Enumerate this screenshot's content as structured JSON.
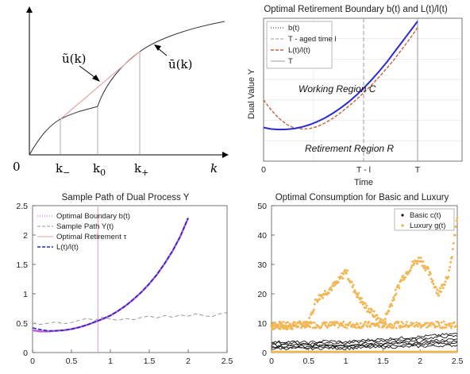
{
  "chart_data": [
    {
      "type": "line",
      "title": "",
      "xlabel": "k",
      "ylabel": "",
      "x_ticks": [
        "0",
        "k_-",
        "k_0",
        "k_+",
        "k"
      ],
      "origin_label": "0",
      "annotations": [
        "ũ(k)",
        "ū(k)"
      ],
      "series": [
        {
          "name": "ũ(k)",
          "x": [
            0.0,
            0.5,
            1.0,
            1.5,
            1.8,
            2.6
          ],
          "y": [
            0.0,
            1.5,
            2.2,
            2.8,
            3.2,
            2.5
          ]
        },
        {
          "name": "ū(k)",
          "x": [
            2.6,
            3.2,
            4.0,
            5.0,
            6.0,
            7.5
          ],
          "y": [
            2.5,
            3.8,
            4.8,
            5.6,
            6.1,
            6.6
          ]
        }
      ],
      "tangent_line": {
        "x": [
          1.8,
          4.2
        ],
        "y": [
          2.2,
          4.9
        ]
      },
      "grid": false
    },
    {
      "type": "line",
      "title": "Optimal Retirement Boundary b(t) and L(t)/l(t)",
      "xlabel": "Time",
      "ylabel": "Dual Value Y",
      "x_ticks": [
        "0",
        "T - l",
        "T"
      ],
      "regions": [
        "Working Region C",
        "Retirement Region R"
      ],
      "legend": [
        "b(t)",
        "T - aged time l",
        "L(t)/l(t)",
        "T"
      ],
      "legend_position": "top-left",
      "grid": true,
      "series": [
        {
          "name": "b(t)",
          "x": [
            0,
            0.05,
            0.1,
            0.15,
            0.2,
            0.25,
            0.3,
            0.35,
            0.4,
            0.45,
            0.5,
            0.55,
            0.6,
            0.65,
            0.7,
            0.75,
            0.8,
            0.85,
            0.9,
            0.95,
            1.0
          ],
          "y": [
            0.33,
            0.315,
            0.31,
            0.312,
            0.32,
            0.335,
            0.358,
            0.388,
            0.425,
            0.47,
            0.52,
            0.578,
            0.643,
            0.715,
            0.795,
            0.88,
            0.97,
            1.07,
            1.17,
            1.27,
            1.37
          ]
        },
        {
          "name": "L(t)/l(t)",
          "x": [
            0,
            0.05,
            0.1,
            0.15,
            0.2,
            0.25,
            0.3,
            0.35,
            0.4,
            0.45,
            0.5,
            0.55,
            0.6,
            0.65,
            0.7,
            0.75,
            0.8,
            0.85,
            0.9,
            0.95,
            1.0
          ],
          "y": [
            0.6,
            0.5,
            0.42,
            0.36,
            0.325,
            0.315,
            0.32,
            0.34,
            0.375,
            0.42,
            0.475,
            0.535,
            0.6,
            0.67,
            0.745,
            0.825,
            0.91,
            1.0,
            1.1,
            1.2,
            1.31
          ]
        }
      ]
    },
    {
      "type": "line",
      "title": "Sample Path of Dual Process Y",
      "xlabel": "",
      "ylabel": "",
      "xlim": [
        0,
        2.5
      ],
      "ylim": [
        0,
        2.5
      ],
      "x_ticks": [
        "0",
        "0.5",
        "1",
        "1.5",
        "2",
        "2.5"
      ],
      "y_ticks": [
        "0",
        "0.5",
        "1",
        "1.5",
        "2",
        "2.5"
      ],
      "legend": [
        "Optimal Boundary b(t)",
        "Sample Path Y(t)",
        "Optimal Retirement τ",
        "L(t)/l(t)"
      ],
      "legend_position": "top-left",
      "grid": false,
      "retirement_time": 0.84,
      "series": [
        {
          "name": "Optimal Boundary b(t)",
          "x": [
            0,
            0.1,
            0.2,
            0.3,
            0.4,
            0.5,
            0.6,
            0.7,
            0.8,
            0.9,
            1.0,
            1.1,
            1.2,
            1.3,
            1.4,
            1.5,
            1.6,
            1.7,
            1.8,
            1.9,
            2.0
          ],
          "y": [
            0.38,
            0.36,
            0.36,
            0.37,
            0.38,
            0.4,
            0.43,
            0.47,
            0.52,
            0.57,
            0.63,
            0.71,
            0.8,
            0.91,
            1.03,
            1.17,
            1.33,
            1.52,
            1.73,
            1.98,
            2.29
          ]
        },
        {
          "name": "Sample Path Y(t)",
          "x": [
            0,
            0.1,
            0.2,
            0.3,
            0.4,
            0.5,
            0.6,
            0.7,
            0.8,
            0.9,
            1.0,
            1.1,
            1.2,
            1.3,
            1.4,
            1.5,
            1.6,
            1.7,
            1.8,
            1.9,
            2.0,
            2.1,
            2.2,
            2.3,
            2.4,
            2.5
          ],
          "y": [
            0.5,
            0.48,
            0.5,
            0.52,
            0.49,
            0.51,
            0.55,
            0.58,
            0.55,
            0.6,
            0.57,
            0.55,
            0.58,
            0.56,
            0.6,
            0.62,
            0.59,
            0.63,
            0.6,
            0.64,
            0.62,
            0.66,
            0.63,
            0.61,
            0.66,
            0.68
          ]
        },
        {
          "name": "L(t)/l(t)",
          "x": [
            0,
            0.1,
            0.2,
            0.3,
            0.4,
            0.5,
            0.6,
            0.7,
            0.8,
            0.9,
            1.0,
            1.1,
            1.2,
            1.3,
            1.4,
            1.5,
            1.6,
            1.7,
            1.8,
            1.9,
            2.0
          ],
          "y": [
            0.42,
            0.39,
            0.37,
            0.37,
            0.38,
            0.4,
            0.43,
            0.47,
            0.52,
            0.57,
            0.63,
            0.71,
            0.8,
            0.91,
            1.03,
            1.17,
            1.33,
            1.52,
            1.73,
            1.98,
            2.29
          ]
        }
      ]
    },
    {
      "type": "scatter",
      "title": "Optimal Consumption for Basic and Luxury",
      "xlabel": "",
      "ylabel": "",
      "xlim": [
        0,
        2.5
      ],
      "ylim": [
        0,
        50
      ],
      "x_ticks": [
        "0",
        "0.5",
        "1",
        "1.5",
        "2",
        "2.5"
      ],
      "y_ticks": [
        "0",
        "10",
        "20",
        "30",
        "40",
        "50"
      ],
      "legend": [
        "Basic c(t)",
        "Luxury g(t)"
      ],
      "legend_position": "top-right",
      "grid": false,
      "series": [
        {
          "name": "Basic c(t)",
          "x": [
            0,
            0.25,
            0.5,
            0.75,
            1.0,
            1.25,
            1.5,
            1.75,
            2.0,
            2.25,
            2.5
          ],
          "y": [
            2.5,
            2.6,
            2.4,
            2.8,
            2.5,
            3.0,
            3.2,
            3.5,
            3.8,
            4.2,
            4.5
          ]
        },
        {
          "name": "Luxury g(t)",
          "x": [
            0,
            0.25,
            0.5,
            0.6,
            0.75,
            0.9,
            1.0,
            1.1,
            1.25,
            1.5,
            1.75,
            1.9,
            2.0,
            2.1,
            2.25,
            2.4,
            2.5
          ],
          "y": [
            9,
            9,
            10,
            18,
            21,
            24,
            28,
            22,
            16,
            10,
            25,
            30,
            32,
            28,
            20,
            28,
            46
          ]
        }
      ]
    }
  ]
}
